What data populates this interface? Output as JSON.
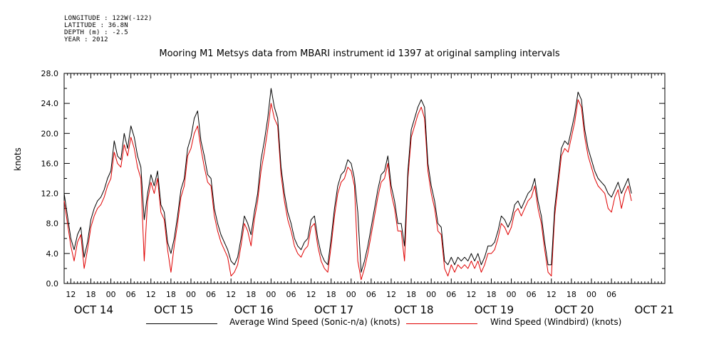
{
  "metadata": {
    "longitude": "LONGITUDE : 122W(-122)",
    "latitude": "LATITUDE : 36.8N",
    "depth": "DEPTH (m) : -2.5",
    "year": "YEAR : 2012"
  },
  "chart_data": {
    "type": "line",
    "title": "Mooring M1 Metsys data from MBARI instrument id 1397 at original sampling intervals",
    "ylabel": "knots",
    "xlabel": "",
    "ylim": [
      0,
      28
    ],
    "yticks": [
      "0.0",
      "4.0",
      "8.0",
      "12.0",
      "16.0",
      "20.0",
      "24.0",
      "28.0"
    ],
    "xlim_hours": [
      10,
      190
    ],
    "hour_ticks": [
      {
        "h": 12,
        "label": "12"
      },
      {
        "h": 18,
        "label": "18"
      },
      {
        "h": 24,
        "label": "00"
      },
      {
        "h": 30,
        "label": "06"
      },
      {
        "h": 36,
        "label": "12"
      },
      {
        "h": 42,
        "label": "18"
      },
      {
        "h": 48,
        "label": "00"
      },
      {
        "h": 54,
        "label": "06"
      },
      {
        "h": 60,
        "label": "12"
      },
      {
        "h": 66,
        "label": "18"
      },
      {
        "h": 72,
        "label": "00"
      },
      {
        "h": 78,
        "label": "06"
      },
      {
        "h": 84,
        "label": "12"
      },
      {
        "h": 90,
        "label": "18"
      },
      {
        "h": 96,
        "label": "00"
      },
      {
        "h": 102,
        "label": "06"
      },
      {
        "h": 108,
        "label": "12"
      },
      {
        "h": 114,
        "label": "18"
      },
      {
        "h": 120,
        "label": "00"
      },
      {
        "h": 126,
        "label": "06"
      },
      {
        "h": 132,
        "label": "12"
      },
      {
        "h": 138,
        "label": "18"
      },
      {
        "h": 144,
        "label": "00"
      },
      {
        "h": 150,
        "label": "06"
      },
      {
        "h": 156,
        "label": "12"
      },
      {
        "h": 162,
        "label": "18"
      },
      {
        "h": 168,
        "label": "00"
      },
      {
        "h": 174,
        "label": "06"
      }
    ],
    "day_labels": [
      {
        "h": 12,
        "label": "OCT 14"
      },
      {
        "h": 36,
        "label": "OCT 15"
      },
      {
        "h": 60,
        "label": "OCT 16"
      },
      {
        "h": 84,
        "label": "OCT 17"
      },
      {
        "h": 108,
        "label": "OCT 18"
      },
      {
        "h": 132,
        "label": "OCT 19"
      },
      {
        "h": 156,
        "label": "OCT 20"
      },
      {
        "h": 180,
        "label": "OCT 21"
      }
    ],
    "series": [
      {
        "name": "Average Wind Speed (Sonic-n/a) (knots)",
        "color": "#000000",
        "x": [
          10,
          11,
          12,
          13,
          14,
          15,
          16,
          17,
          18,
          19,
          20,
          21,
          22,
          23,
          24,
          25,
          26,
          27,
          28,
          29,
          30,
          31,
          32,
          33,
          34,
          35,
          36,
          37,
          38,
          39,
          40,
          41,
          42,
          43,
          44,
          45,
          46,
          47,
          48,
          49,
          50,
          51,
          52,
          53,
          54,
          55,
          56,
          57,
          58,
          59,
          60,
          61,
          62,
          63,
          64,
          65,
          66,
          67,
          68,
          69,
          70,
          71,
          72,
          73,
          74,
          75,
          76,
          77,
          78,
          79,
          80,
          81,
          82,
          83,
          84,
          85,
          86,
          87,
          88,
          89,
          90,
          91,
          92,
          93,
          94,
          95,
          96,
          97,
          98,
          99,
          100,
          101,
          102,
          103,
          104,
          105,
          106,
          107,
          108,
          109,
          110,
          111,
          112,
          113,
          114,
          115,
          116,
          117,
          118,
          119,
          120,
          121,
          122,
          123,
          124,
          125,
          126,
          127,
          128,
          129,
          130,
          131,
          132,
          133,
          134,
          135,
          136,
          137,
          138,
          139,
          140,
          141,
          142,
          143,
          144,
          145,
          146,
          147,
          148,
          149,
          150,
          151,
          152,
          153,
          154,
          155,
          156,
          157,
          158,
          159,
          160,
          161,
          162,
          163,
          164,
          165,
          166,
          167,
          168,
          169,
          170,
          171,
          172,
          173,
          174,
          175,
          176,
          177,
          178,
          179,
          180
        ],
        "y": [
          12,
          9,
          6,
          4.5,
          6.5,
          7.5,
          3.5,
          5.5,
          8.5,
          10,
          11,
          11.5,
          12.5,
          14,
          15,
          19,
          17,
          16.5,
          20,
          18,
          21,
          19.5,
          17,
          15.5,
          8.5,
          12,
          14.5,
          13,
          15,
          10.5,
          9.5,
          5.5,
          4,
          6,
          9,
          12.5,
          14,
          18,
          19.5,
          22,
          23,
          19,
          17,
          14.5,
          14,
          10,
          8,
          6.5,
          5.5,
          4.5,
          3,
          2.5,
          3.5,
          6,
          9,
          8,
          6.5,
          9.5,
          12,
          16.5,
          19,
          22,
          26,
          23.5,
          22,
          15.5,
          12,
          9.5,
          8,
          6,
          5,
          4.5,
          5.5,
          6,
          8.5,
          9,
          6,
          4,
          3,
          2.5,
          6,
          10,
          13,
          14.5,
          15,
          16.5,
          16,
          14,
          9.5,
          1.5,
          3,
          5,
          7.5,
          10,
          12.5,
          14.5,
          15,
          17,
          13,
          11,
          8,
          8,
          5,
          15,
          20.5,
          22,
          23.5,
          24.5,
          23.5,
          16,
          13,
          11,
          8,
          7.5,
          3,
          2.5,
          3.5,
          2.5,
          3.5,
          3,
          3.5,
          3,
          4,
          3,
          4,
          2.5,
          3.5,
          5,
          5,
          5.5,
          7,
          9,
          8.5,
          7.5,
          8.5,
          10.5,
          11,
          10,
          11,
          12,
          12.5,
          14,
          11,
          9,
          5.5,
          2.5,
          2.5,
          10,
          14,
          18,
          19,
          18.5,
          20.5,
          22.5,
          25.5,
          24.5,
          20.5,
          18,
          16.5,
          15,
          14,
          13.5,
          13,
          12,
          11.5,
          12.5,
          13.5,
          12,
          13,
          14,
          12
        ]
      },
      {
        "name": "Wind Speed (Windbird) (knots)",
        "color": "#e00000",
        "x": [
          10,
          11,
          12,
          13,
          14,
          15,
          16,
          17,
          18,
          19,
          20,
          21,
          22,
          23,
          24,
          25,
          26,
          27,
          28,
          29,
          30,
          31,
          32,
          33,
          34,
          35,
          36,
          37,
          38,
          39,
          40,
          41,
          42,
          43,
          44,
          45,
          46,
          47,
          48,
          49,
          50,
          51,
          52,
          53,
          54,
          55,
          56,
          57,
          58,
          59,
          60,
          61,
          62,
          63,
          64,
          65,
          66,
          67,
          68,
          69,
          70,
          71,
          72,
          73,
          74,
          75,
          76,
          77,
          78,
          79,
          80,
          81,
          82,
          83,
          84,
          85,
          86,
          87,
          88,
          89,
          90,
          91,
          92,
          93,
          94,
          95,
          96,
          97,
          98,
          99,
          100,
          101,
          102,
          103,
          104,
          105,
          106,
          107,
          108,
          109,
          110,
          111,
          112,
          113,
          114,
          115,
          116,
          117,
          118,
          119,
          120,
          121,
          122,
          123,
          124,
          125,
          126,
          127,
          128,
          129,
          130,
          131,
          132,
          133,
          134,
          135,
          136,
          137,
          138,
          139,
          140,
          141,
          142,
          143,
          144,
          145,
          146,
          147,
          148,
          149,
          150,
          151,
          152,
          153,
          154,
          155,
          156,
          157,
          158,
          159,
          160,
          161,
          162,
          163,
          164,
          165,
          166,
          167,
          168,
          169,
          170,
          171,
          172,
          173,
          174,
          175,
          176,
          177,
          178,
          179,
          180
        ],
        "y": [
          11,
          8,
          5,
          3,
          5.5,
          6.5,
          2,
          4.5,
          7.5,
          9,
          10,
          10.5,
          11.5,
          13,
          14,
          17.5,
          16,
          15.5,
          18.5,
          17,
          19.5,
          18,
          15.5,
          14,
          3,
          11,
          13.5,
          12,
          14,
          9.5,
          8.5,
          4.5,
          1.5,
          5,
          8,
          11.5,
          13,
          17,
          18,
          20,
          21,
          18,
          15.5,
          13.5,
          13,
          9,
          7,
          5.5,
          4.5,
          3.5,
          1,
          1.5,
          2.5,
          5,
          8,
          7,
          5,
          8.5,
          11,
          15,
          17.5,
          20.5,
          24,
          22,
          21,
          14.5,
          11,
          8.5,
          7,
          5,
          4,
          3.5,
          4.5,
          5,
          7.5,
          8,
          5,
          3,
          2,
          1.5,
          5,
          9,
          12,
          13.5,
          14,
          15.5,
          15,
          13,
          3,
          0.5,
          2,
          4,
          6.5,
          9,
          11.5,
          13.5,
          14,
          16,
          12,
          10,
          7,
          7,
          3,
          14,
          19.5,
          21,
          22.5,
          23.5,
          22,
          15,
          12,
          10,
          7,
          6.5,
          2,
          1,
          2.5,
          1.5,
          2.5,
          2,
          2.5,
          2,
          3,
          2,
          3,
          1.5,
          2.5,
          4,
          4,
          4.5,
          6,
          8,
          7.5,
          6.5,
          7.5,
          9.5,
          10,
          9,
          10,
          11,
          11.5,
          13,
          10,
          8,
          4.5,
          1.5,
          1,
          9,
          13,
          17,
          18,
          17.5,
          19.5,
          21.5,
          24.5,
          23.5,
          19.5,
          17,
          15.5,
          14,
          13,
          12.5,
          12,
          10,
          9.5,
          11.5,
          12.5,
          10,
          12,
          13,
          11
        ]
      }
    ],
    "grid": false,
    "legend": "bottom"
  }
}
